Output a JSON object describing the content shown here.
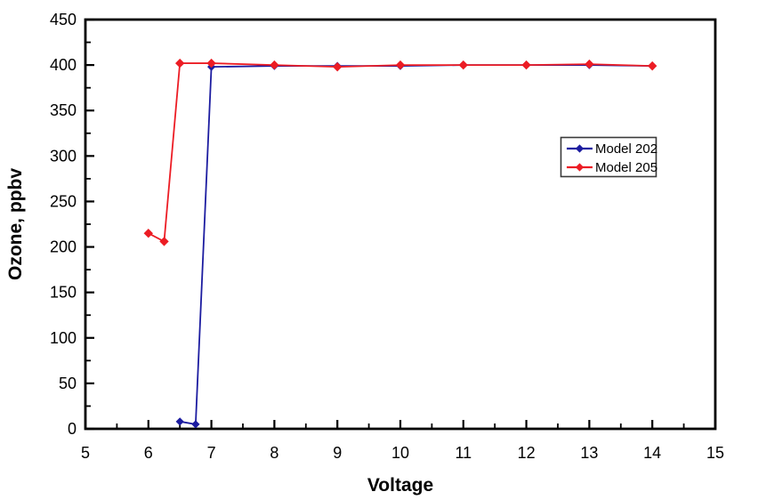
{
  "figure": {
    "background": "#ffffff",
    "frame_color": "#000000"
  },
  "chart_data": {
    "type": "line",
    "title": "",
    "xlabel": "Voltage",
    "ylabel": "Ozone, ppbv",
    "xlim": [
      5,
      15
    ],
    "ylim": [
      0,
      450
    ],
    "x_ticks": [
      5,
      6,
      7,
      8,
      9,
      10,
      11,
      12,
      13,
      14,
      15
    ],
    "y_ticks": [
      0,
      50,
      100,
      150,
      200,
      250,
      300,
      350,
      400,
      450
    ],
    "x_minor_step": 0.5,
    "y_minor_step": 25,
    "grid": false,
    "marker": "diamond",
    "legend_position": "inside-upper-right",
    "series": [
      {
        "name": "Model 202",
        "color": "#1c1ca0",
        "x": [
          6.5,
          6.75,
          7,
          8,
          9,
          10,
          11,
          12,
          13,
          14
        ],
        "y": [
          8,
          5,
          398,
          399,
          399,
          399,
          400,
          400,
          400,
          399
        ]
      },
      {
        "name": "Model 205",
        "color": "#ec1c24",
        "x": [
          6,
          6.25,
          6.5,
          7,
          8,
          9,
          10,
          11,
          12,
          13,
          14
        ],
        "y": [
          215,
          206,
          402,
          402,
          400,
          398,
          400,
          400,
          400,
          401,
          399
        ]
      }
    ]
  },
  "legend": {
    "items": [
      {
        "label": "Model 202",
        "color": "#1c1ca0"
      },
      {
        "label": "Model 205",
        "color": "#ec1c24"
      }
    ],
    "border_color": "#3a3a3a",
    "background": "#ffffff"
  }
}
